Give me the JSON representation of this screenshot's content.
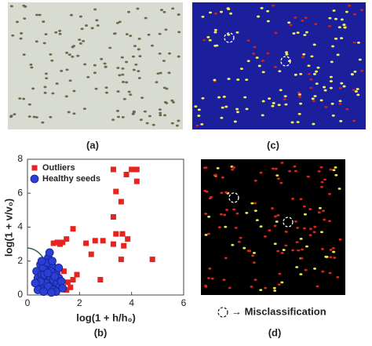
{
  "panels": {
    "a": "(a)",
    "b": "(b)",
    "c": "(c)",
    "d": "(d)",
    "legend": "→ Misclassification"
  },
  "chart_data": {
    "type": "scatter",
    "xlabel": "log(1 + h/h₀)",
    "ylabel": "log(1 + v/v₀)",
    "xlim": [
      0,
      6
    ],
    "ylim": [
      0,
      8
    ],
    "xticks": [
      0,
      2,
      4,
      6
    ],
    "yticks": [
      0,
      2,
      4,
      6,
      8
    ],
    "legend": "upper left",
    "series": [
      {
        "name": "Outliers",
        "color": "#e8221e",
        "marker": "square",
        "x": [
          3.3,
          4.0,
          4.2,
          3.8,
          4.2,
          3.4,
          3.6,
          3.3,
          1.75,
          1.5,
          1.35,
          1.15,
          1.0,
          2.6,
          2.9,
          3.4,
          3.65,
          3.85,
          3.3,
          3.7,
          3.6,
          4.8,
          2.45,
          2.8,
          1.9,
          1.75,
          1.55,
          1.4,
          1.25,
          2.25,
          1.5,
          1.65,
          1.3
        ],
        "values": [
          7.4,
          7.4,
          7.4,
          7.1,
          6.7,
          6.1,
          5.5,
          4.6,
          3.9,
          3.3,
          3.1,
          3.1,
          3.05,
          3.2,
          3.2,
          3.6,
          3.6,
          3.3,
          3.0,
          2.9,
          2.1,
          2.1,
          2.4,
          0.9,
          1.2,
          0.9,
          0.75,
          1.4,
          3.0,
          3.05,
          0.3,
          0.45,
          0.65
        ]
      },
      {
        "name": "Healthy seeds",
        "color": "#2a3fd6",
        "marker": "circle",
        "x": [
          0.35,
          0.4,
          0.45,
          0.5,
          0.55,
          0.6,
          0.65,
          0.7,
          0.75,
          0.8,
          0.85,
          0.9,
          0.95,
          1.0,
          1.05,
          1.1,
          1.15,
          1.2,
          1.25,
          1.3,
          0.6,
          0.7,
          0.8,
          0.9,
          1.0,
          0.5,
          0.75,
          0.85,
          0.95,
          1.1,
          0.4,
          0.65,
          0.55,
          1.2,
          1.35,
          0.3,
          0.78,
          1.05,
          0.62,
          0.92
        ],
        "values": [
          1.4,
          1.0,
          0.6,
          1.8,
          1.2,
          0.4,
          0.9,
          1.5,
          0.3,
          2.2,
          1.1,
          0.6,
          1.7,
          0.9,
          0.4,
          1.3,
          0.7,
          1.0,
          0.5,
          0.8,
          1.6,
          0.7,
          0.5,
          1.4,
          0.3,
          0.8,
          1.9,
          2.5,
          2.0,
          0.2,
          0.3,
          1.2,
          2.0,
          1.6,
          0.4,
          0.7,
          1.3,
          1.1,
          0.2,
          0.15
        ]
      }
    ]
  }
}
